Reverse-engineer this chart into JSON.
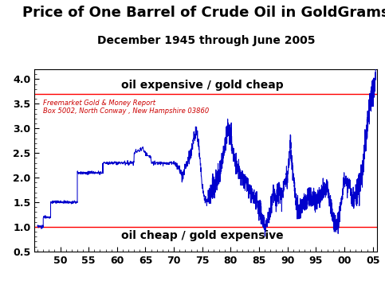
{
  "title": "Price of One Barrel of Crude Oil in GoldGrams",
  "subtitle": "December 1945 through June 2005",
  "ylim": [
    0.5,
    4.2
  ],
  "xlim": [
    1945.5,
    2005.8
  ],
  "hline_expensive": 3.7,
  "hline_cheap": 1.0,
  "label_expensive": "oil expensive / gold cheap",
  "label_cheap": "oil cheap / gold expensive",
  "watermark_line1": "Freemarket Gold & Money Report",
  "watermark_line2": "Box 5002, North Conway , New Hampshire 03860",
  "line_color": "#0000cc",
  "hline_color": "#ff0000",
  "xtick_labels": [
    "50",
    "55",
    "60",
    "65",
    "70",
    "75",
    "80",
    "85",
    "90",
    "95",
    "00",
    "05"
  ],
  "yticks": [
    0.5,
    1.0,
    1.5,
    2.0,
    2.5,
    3.0,
    3.5,
    4.0
  ],
  "title_fontsize": 13,
  "subtitle_fontsize": 10,
  "annotation_fontsize": 10,
  "watermark_fontsize": 6
}
